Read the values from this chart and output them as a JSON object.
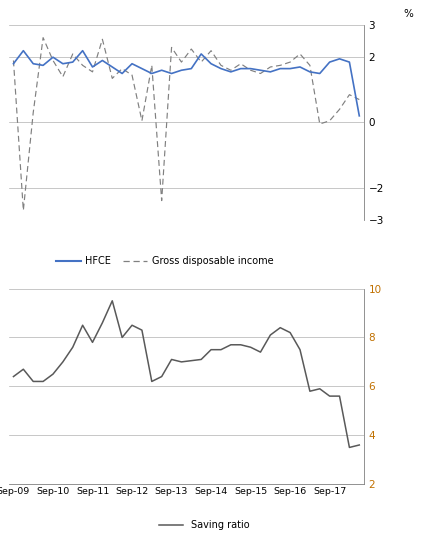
{
  "top_chart": {
    "hfce": [
      1.8,
      2.2,
      1.8,
      1.75,
      2.0,
      1.8,
      1.85,
      2.2,
      1.7,
      1.9,
      1.7,
      1.5,
      1.8,
      1.65,
      1.5,
      1.6,
      1.5,
      1.6,
      1.65,
      2.1,
      1.8,
      1.65,
      1.55,
      1.65,
      1.65,
      1.6,
      1.55,
      1.65,
      1.65,
      1.7,
      1.55,
      1.5,
      1.85,
      1.95,
      1.85,
      0.2
    ],
    "gdi": [
      1.9,
      -2.7,
      0.3,
      2.6,
      1.9,
      1.4,
      2.1,
      1.75,
      1.55,
      2.55,
      1.35,
      1.65,
      1.45,
      0.05,
      1.75,
      -2.4,
      2.3,
      1.85,
      2.25,
      1.85,
      2.2,
      1.75,
      1.6,
      1.8,
      1.6,
      1.5,
      1.7,
      1.75,
      1.85,
      2.1,
      1.75,
      -0.05,
      0.05,
      0.4,
      0.85,
      0.7
    ],
    "ylim": [
      -3,
      3
    ],
    "yticks": [
      -3,
      -2,
      0,
      2,
      3
    ],
    "ylabel": "%",
    "hfce_color": "#4472C4",
    "gdi_color": "#808080"
  },
  "bottom_chart": {
    "saving": [
      6.4,
      6.7,
      6.2,
      6.2,
      6.5,
      7.0,
      7.6,
      8.5,
      7.8,
      8.6,
      9.5,
      8.0,
      8.5,
      8.3,
      6.2,
      6.4,
      7.1,
      7.0,
      7.05,
      7.1,
      7.5,
      7.5,
      7.7,
      7.7,
      7.6,
      7.4,
      8.1,
      8.4,
      8.2,
      7.5,
      5.8,
      5.9,
      5.6,
      5.6,
      3.5,
      3.6
    ],
    "ylim": [
      2,
      10
    ],
    "yticks": [
      2,
      4,
      6,
      8,
      10
    ],
    "ylabel_color": "#C07000",
    "saving_color": "#595959"
  },
  "x_labels": [
    "Sep-09",
    "Sep-10",
    "Sep-11",
    "Sep-12",
    "Sep-13",
    "Sep-14",
    "Sep-15",
    "Sep-16",
    "Sep-17"
  ],
  "n_points": 36,
  "background_color": "#ffffff",
  "grid_color": "#b0b0b0",
  "legend1": {
    "hfce_label": "HFCE",
    "gdi_label": "Gross disposable income"
  },
  "legend2": {
    "saving_label": "Saving ratio"
  }
}
